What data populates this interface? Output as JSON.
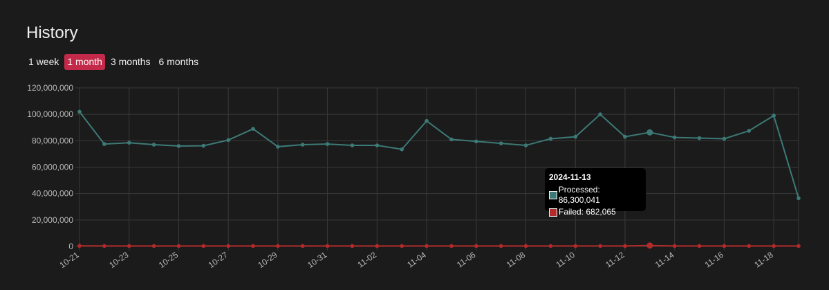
{
  "header": {
    "title": "History"
  },
  "ranges": [
    {
      "label": "1 week",
      "active": false
    },
    {
      "label": "1 month",
      "active": true
    },
    {
      "label": "3 months",
      "active": false
    },
    {
      "label": "6 months",
      "active": false
    }
  ],
  "colors": {
    "processed": "#3d7a77",
    "failed": "#b22b2b",
    "active_range": "#c32a4a",
    "grid": "#3a3a3a",
    "background": "#1b1b1b"
  },
  "tooltip": {
    "title": "2024-11-13",
    "rows": [
      {
        "label": "Processed: 86,300,041",
        "swatch": "processed"
      },
      {
        "label": "Failed: 682,065",
        "swatch": "failed"
      }
    ]
  },
  "chart_data": {
    "type": "line",
    "x": [
      "10-21",
      "10-22",
      "10-23",
      "10-24",
      "10-25",
      "10-26",
      "10-27",
      "10-28",
      "10-29",
      "10-30",
      "10-31",
      "11-01",
      "11-02",
      "11-03",
      "11-04",
      "11-05",
      "11-06",
      "11-07",
      "11-08",
      "11-09",
      "11-10",
      "11-11",
      "11-12",
      "11-13",
      "11-14",
      "11-15",
      "11-16",
      "11-17",
      "11-18",
      "11-19"
    ],
    "x_tick_labels": [
      "10-21",
      "10-23",
      "10-25",
      "10-27",
      "10-29",
      "10-31",
      "11-02",
      "11-04",
      "11-06",
      "11-08",
      "11-10",
      "11-12",
      "11-14",
      "11-16",
      "11-18"
    ],
    "y_tick_labels": [
      "0",
      "20,000,000",
      "40,000,000",
      "60,000,000",
      "80,000,000",
      "100,000,000",
      "120,000,000"
    ],
    "ylim": [
      0,
      120000000
    ],
    "grid": true,
    "legend": "none",
    "highlight_index": 23,
    "series": [
      {
        "key": "processed",
        "values": [
          102000000,
          77500000,
          78500000,
          77000000,
          76000000,
          76200000,
          80500000,
          89000000,
          75500000,
          77000000,
          77500000,
          76500000,
          76500000,
          73500000,
          95000000,
          81000000,
          79500000,
          78000000,
          76500000,
          81500000,
          83000000,
          100000000,
          83000000,
          86300041,
          82500000,
          82000000,
          81500000,
          87500000,
          99000000,
          36500000
        ]
      },
      {
        "key": "failed",
        "values": [
          400000,
          300000,
          300000,
          300000,
          300000,
          300000,
          300000,
          300000,
          300000,
          300000,
          300000,
          300000,
          300000,
          300000,
          300000,
          300000,
          300000,
          300000,
          300000,
          300000,
          300000,
          300000,
          300000,
          682065,
          300000,
          300000,
          300000,
          300000,
          300000,
          300000
        ]
      }
    ]
  }
}
